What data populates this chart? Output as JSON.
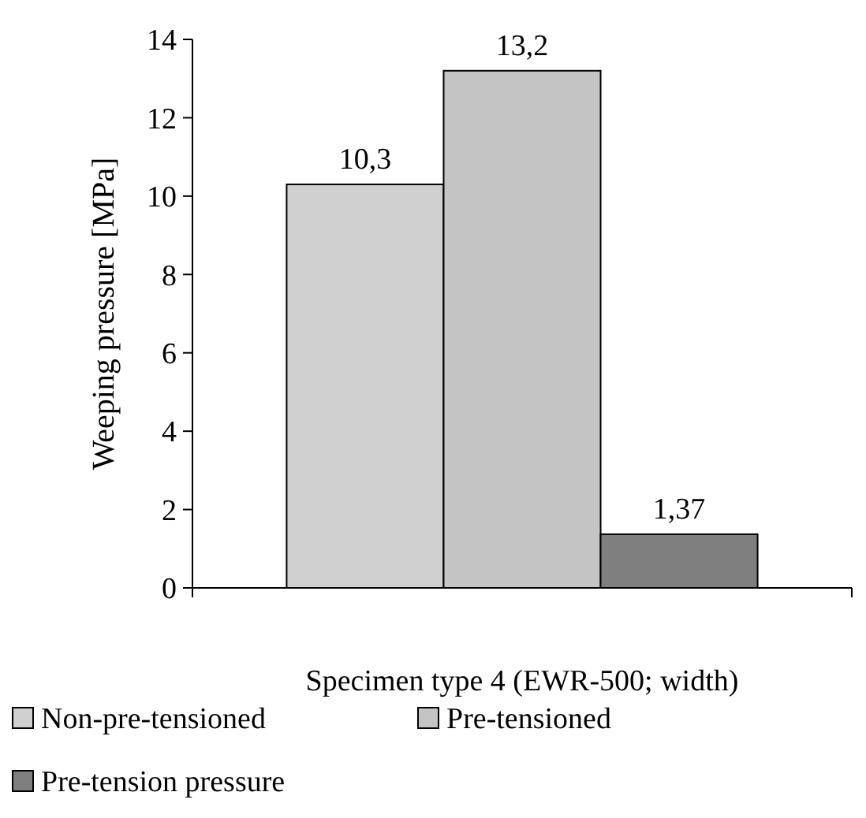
{
  "chart_data": {
    "type": "bar",
    "xlabel": "Specimen type 4 (EWR-500; width)",
    "ylabel": "Weeping pressure [MPa]",
    "categories": [
      null
    ],
    "series": [
      {
        "name": "Non-pre-tensioned",
        "color": "#d0d0d0",
        "values": [
          10.3
        ],
        "value_labels": [
          "10,3"
        ]
      },
      {
        "name": "Pre-tensioned",
        "color": "#c4c4c4",
        "values": [
          13.2
        ],
        "value_labels": [
          "13,2"
        ]
      },
      {
        "name": "Pre-tension pressure",
        "color": "#7f7f7f",
        "values": [
          1.37
        ],
        "value_labels": [
          "1,37"
        ]
      }
    ],
    "ylim": [
      0,
      14
    ],
    "yticks": [
      0,
      2,
      4,
      6,
      8,
      10,
      12,
      14
    ],
    "grid": false,
    "legend": "bottom"
  }
}
